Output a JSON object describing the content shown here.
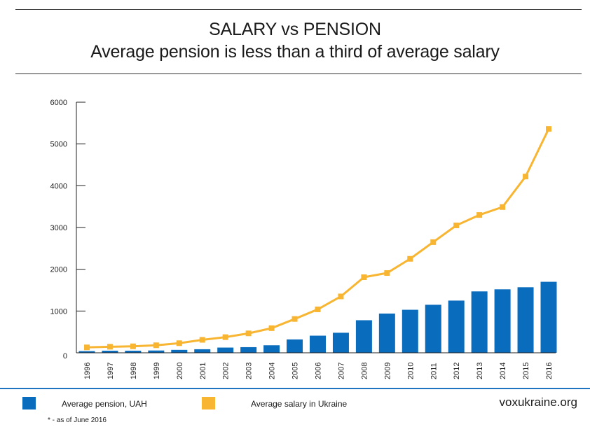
{
  "header": {
    "title": "SALARY vs PENSION",
    "subtitle": "Average pension is less than a third of average salary"
  },
  "legend": {
    "pension_label": "Average pension, UAH",
    "salary_label": "Average salary in Ukraine"
  },
  "source": "voxukraine.org",
  "footnote": "* - as of June 2016",
  "colors": {
    "pension": "#0a6cbd",
    "salary": "#f7b531",
    "rule": "#1f74c1"
  },
  "chart_data": {
    "type": "bar",
    "categories": [
      "1996",
      "1997",
      "1998",
      "1999",
      "2000",
      "2001",
      "2002",
      "2003",
      "2004",
      "2005",
      "2006",
      "2007",
      "2008",
      "2009",
      "2010",
      "2011",
      "2012",
      "2013",
      "2014",
      "2015",
      "2016"
    ],
    "series": [
      {
        "name": "Average pension, UAH",
        "type": "bar",
        "values": [
          40,
          50,
          50,
          55,
          70,
          85,
          125,
          135,
          180,
          320,
          410,
          480,
          780,
          940,
          1030,
          1150,
          1250,
          1470,
          1520,
          1570,
          1700
        ]
      },
      {
        "name": "Average salary in Ukraine",
        "type": "line",
        "values": [
          130,
          145,
          155,
          180,
          230,
          310,
          375,
          465,
          590,
          810,
          1040,
          1350,
          1810,
          1910,
          2250,
          2650,
          3050,
          3300,
          3490,
          4220,
          5360
        ]
      }
    ],
    "yticks": [
      "0",
      "1000",
      "2000",
      "3000",
      "4000",
      "5000",
      "6000"
    ],
    "ylim": [
      0,
      6000
    ]
  }
}
